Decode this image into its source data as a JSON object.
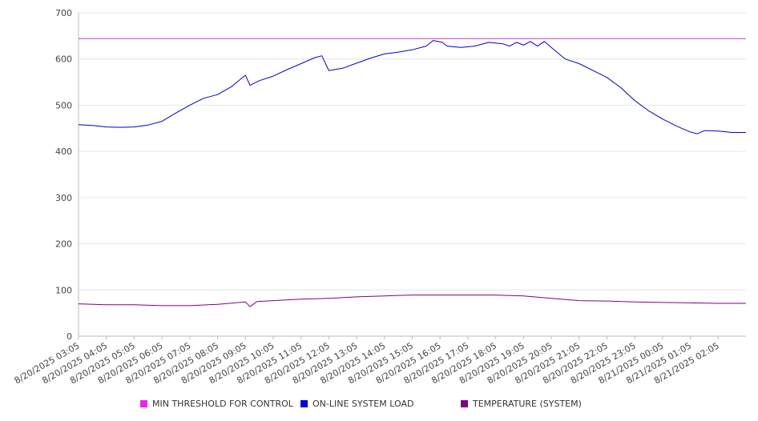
{
  "chart_data": {
    "type": "line",
    "title": "",
    "xlabel": "",
    "ylabel": "",
    "ylim": [
      0,
      700
    ],
    "y_ticks": [
      0,
      100,
      200,
      300,
      400,
      500,
      600,
      700
    ],
    "grid": true,
    "legend_position": "bottom",
    "x_tick_labels": [
      "8/20/2025 03:05",
      "8/20/2025 04:05",
      "8/20/2025 05:05",
      "8/20/2025 06:05",
      "8/20/2025 07:05",
      "8/20/2025 08:05",
      "8/20/2025 09:05",
      "8/20/2025 10:05",
      "8/20/2025 11:05",
      "8/20/2025 12:05",
      "8/20/2025 13:05",
      "8/20/2025 14:05",
      "8/20/2025 15:05",
      "8/20/2025 16:05",
      "8/20/2025 17:05",
      "8/20/2025 18:05",
      "8/20/2025 19:05",
      "8/20/2025 20:05",
      "8/20/2025 21:05",
      "8/20/2025 22:05",
      "8/20/2025 23:05",
      "8/21/2025 00:05",
      "8/21/2025 01:05",
      "8/21/2025 02:05"
    ],
    "x_range": [
      "8/20/2025 03:05",
      "8/21/2025 03:05"
    ],
    "series": [
      {
        "name": "MIN THRESHOLD FOR CONTROL",
        "color": "#cc33cc",
        "points": [
          [
            "8/20/2025 03:05",
            644
          ],
          [
            "8/21/2025 03:05",
            644
          ]
        ]
      },
      {
        "name": "ON-LINE SYSTEM LOAD",
        "color": "#0000cc",
        "points": [
          [
            "8/20/2025 03:05",
            458
          ],
          [
            "8/20/2025 03:35",
            456
          ],
          [
            "8/20/2025 04:05",
            453
          ],
          [
            "8/20/2025 04:35",
            452
          ],
          [
            "8/20/2025 05:05",
            453
          ],
          [
            "8/20/2025 05:35",
            457
          ],
          [
            "8/20/2025 06:05",
            465
          ],
          [
            "8/20/2025 06:35",
            483
          ],
          [
            "8/20/2025 07:05",
            500
          ],
          [
            "8/20/2025 07:35",
            515
          ],
          [
            "8/20/2025 08:05",
            523
          ],
          [
            "8/20/2025 08:35",
            540
          ],
          [
            "8/20/2025 09:05",
            565
          ],
          [
            "8/20/2025 09:15",
            543
          ],
          [
            "8/20/2025 09:35",
            553
          ],
          [
            "8/20/2025 10:05",
            563
          ],
          [
            "8/20/2025 10:35",
            577
          ],
          [
            "8/20/2025 11:05",
            590
          ],
          [
            "8/20/2025 11:35",
            603
          ],
          [
            "8/20/2025 11:50",
            607
          ],
          [
            "8/20/2025 12:05",
            575
          ],
          [
            "8/20/2025 12:35",
            580
          ],
          [
            "8/20/2025 13:05",
            591
          ],
          [
            "8/20/2025 13:35",
            602
          ],
          [
            "8/20/2025 14:05",
            611
          ],
          [
            "8/20/2025 14:35",
            615
          ],
          [
            "8/20/2025 15:05",
            620
          ],
          [
            "8/20/2025 15:35",
            628
          ],
          [
            "8/20/2025 15:50",
            640
          ],
          [
            "8/20/2025 16:10",
            636
          ],
          [
            "8/20/2025 16:20",
            628
          ],
          [
            "8/20/2025 16:50",
            625
          ],
          [
            "8/20/2025 17:20",
            628
          ],
          [
            "8/20/2025 17:50",
            636
          ],
          [
            "8/20/2025 18:20",
            633
          ],
          [
            "8/20/2025 18:35",
            628
          ],
          [
            "8/20/2025 18:50",
            636
          ],
          [
            "8/20/2025 19:05",
            630
          ],
          [
            "8/20/2025 19:20",
            638
          ],
          [
            "8/20/2025 19:35",
            628
          ],
          [
            "8/20/2025 19:50",
            638
          ],
          [
            "8/20/2025 20:05",
            625
          ],
          [
            "8/20/2025 20:35",
            600
          ],
          [
            "8/20/2025 21:05",
            590
          ],
          [
            "8/20/2025 21:35",
            575
          ],
          [
            "8/20/2025 22:05",
            560
          ],
          [
            "8/20/2025 22:35",
            538
          ],
          [
            "8/20/2025 23:05",
            510
          ],
          [
            "8/20/2025 23:35",
            488
          ],
          [
            "8/21/2025 00:05",
            470
          ],
          [
            "8/21/2025 00:35",
            455
          ],
          [
            "8/21/2025 01:05",
            442
          ],
          [
            "8/21/2025 01:20",
            438
          ],
          [
            "8/21/2025 01:35",
            445
          ],
          [
            "8/21/2025 02:05",
            444
          ],
          [
            "8/21/2025 02:35",
            441
          ],
          [
            "8/21/2025 03:05",
            441
          ]
        ]
      },
      {
        "name": "TEMPERATURE (SYSTEM)",
        "color": "#800080",
        "points": [
          [
            "8/20/2025 03:05",
            70
          ],
          [
            "8/20/2025 04:05",
            68
          ],
          [
            "8/20/2025 05:05",
            68
          ],
          [
            "8/20/2025 06:05",
            66
          ],
          [
            "8/20/2025 07:05",
            66
          ],
          [
            "8/20/2025 08:05",
            69
          ],
          [
            "8/20/2025 09:05",
            74
          ],
          [
            "8/20/2025 09:15",
            64
          ],
          [
            "8/20/2025 09:30",
            75
          ],
          [
            "8/20/2025 10:05",
            77
          ],
          [
            "8/20/2025 11:05",
            80
          ],
          [
            "8/20/2025 12:05",
            82
          ],
          [
            "8/20/2025 13:05",
            85
          ],
          [
            "8/20/2025 14:05",
            87
          ],
          [
            "8/20/2025 15:05",
            89
          ],
          [
            "8/20/2025 16:05",
            89
          ],
          [
            "8/20/2025 17:05",
            89
          ],
          [
            "8/20/2025 18:05",
            89
          ],
          [
            "8/20/2025 19:05",
            87
          ],
          [
            "8/20/2025 20:05",
            82
          ],
          [
            "8/20/2025 21:05",
            77
          ],
          [
            "8/20/2025 22:05",
            76
          ],
          [
            "8/20/2025 23:05",
            74
          ],
          [
            "8/21/2025 00:05",
            73
          ],
          [
            "8/21/2025 01:05",
            72
          ],
          [
            "8/21/2025 02:05",
            71
          ],
          [
            "8/21/2025 03:05",
            71
          ]
        ]
      }
    ]
  },
  "legend": {
    "items": [
      {
        "label": "MIN THRESHOLD FOR CONTROL",
        "color": "#ee22ee"
      },
      {
        "label": "ON-LINE SYSTEM LOAD",
        "color": "#0000dd"
      },
      {
        "label": "TEMPERATURE (SYSTEM)",
        "color": "#800080"
      }
    ]
  }
}
